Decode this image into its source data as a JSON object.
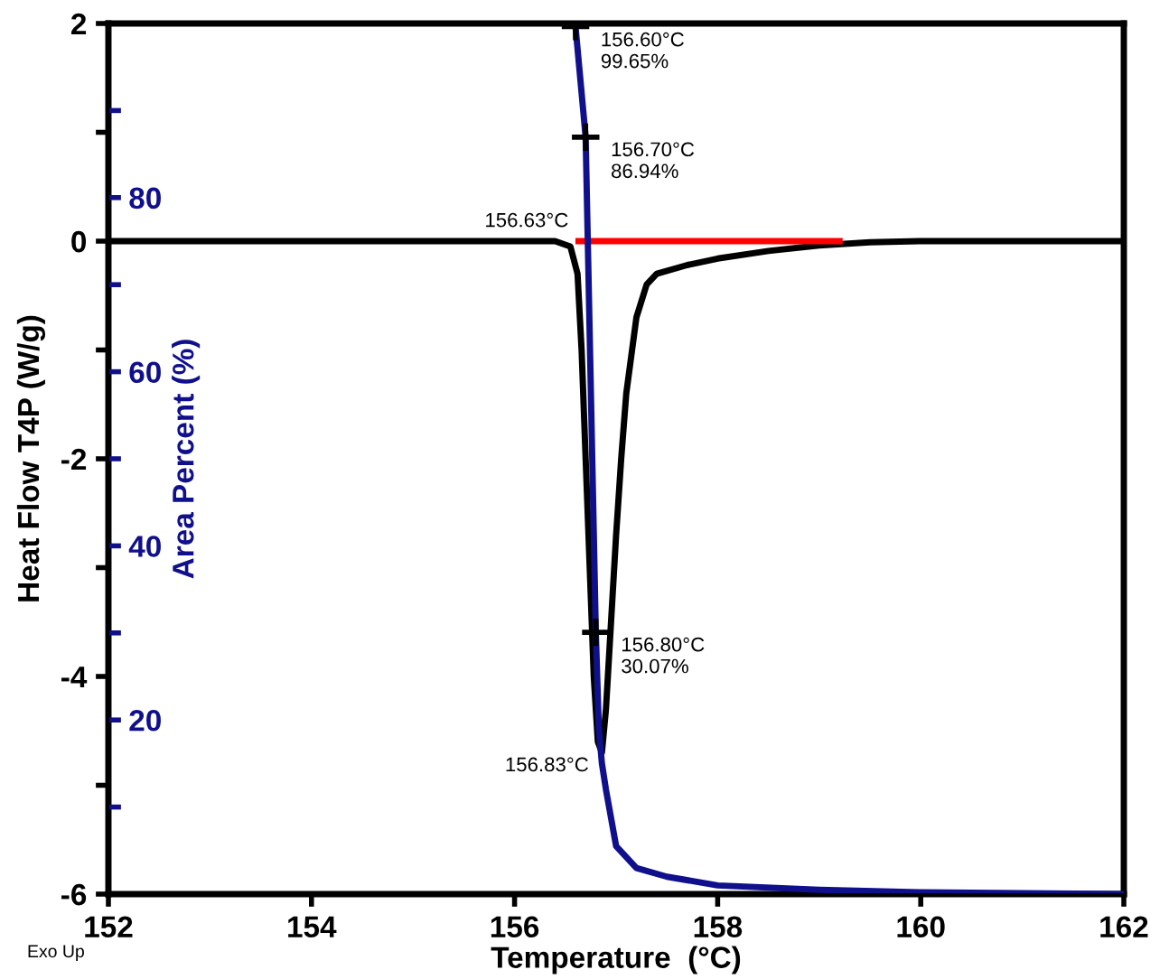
{
  "chart_data": {
    "type": "line",
    "xlabel": "Temperature  (°C)",
    "ylabel": "Heat Flow T4P (W/g)",
    "y2label": "Area Percent (%)",
    "xlim": [
      152,
      162
    ],
    "xticks": [
      152,
      154,
      156,
      158,
      160,
      162
    ],
    "ylim": [
      -6,
      2
    ],
    "yticks": [
      -6,
      {
        "value": -5,
        "label": null
      },
      -4,
      {
        "value": -3,
        "label": null
      },
      -2,
      {
        "value": -1,
        "label": null
      },
      0,
      {
        "value": 1,
        "label": null
      },
      2
    ],
    "y2lim": [
      0,
      100
    ],
    "y2ticks": [
      {
        "value": 10,
        "label": null
      },
      20,
      {
        "value": 30,
        "label": null
      },
      40,
      {
        "value": 50,
        "label": null
      },
      60,
      {
        "value": 70,
        "label": null
      },
      80,
      {
        "value": 90,
        "label": null
      }
    ],
    "grid": false,
    "legend": false,
    "series": [
      {
        "color": "#000000",
        "x": [
          152,
          156.4,
          156.55,
          156.62,
          156.66,
          156.7,
          156.74,
          156.78,
          156.82,
          156.86,
          156.9,
          156.95,
          157.0,
          157.05,
          157.1,
          157.2,
          157.3,
          157.4,
          157.7,
          158,
          158.5,
          159,
          159.5,
          160,
          162
        ],
        "values": [
          0,
          0,
          -0.05,
          -0.3,
          -1.0,
          -2.0,
          -3.0,
          -4.0,
          -4.6,
          -4.7,
          -4.3,
          -3.5,
          -2.7,
          -2.0,
          -1.4,
          -0.7,
          -0.4,
          -0.3,
          -0.22,
          -0.16,
          -0.09,
          -0.04,
          -0.01,
          0,
          0
        ]
      },
      {
        "color": "#ff0000",
        "x": [
          156.63,
          159.2
        ],
        "values": [
          0,
          0
        ]
      },
      {
        "axis": "y2",
        "color": "#10108c",
        "x": [
          156.58,
          156.6,
          156.7,
          156.8,
          156.83,
          156.86,
          156.9,
          157.0,
          157.2,
          157.5,
          158,
          159,
          160,
          162
        ],
        "values": [
          100,
          99.65,
          86.94,
          30.07,
          19,
          15,
          12,
          5.5,
          3,
          2,
          1,
          0.5,
          0.2,
          0
        ]
      },
      {
        "type": "scatter",
        "axis": "y2",
        "color": "#000000",
        "marker": "cross",
        "x": [
          156.6,
          156.7,
          156.8
        ],
        "values": [
          99.65,
          86.94,
          30.07
        ]
      }
    ],
    "annotations": [
      {
        "text": "156.60°C\n99.65%",
        "x": 156.6,
        "y": 1.97
      },
      {
        "text": "156.70°C\n86.94%",
        "x": 156.7,
        "y": 0.96
      },
      {
        "text": "156.63°C",
        "x": 156.63,
        "y": 0
      },
      {
        "text": "156.80°C\n30.07%",
        "x": 156.8,
        "y": -3.59
      },
      {
        "text": "156.83°C",
        "x": 156.83,
        "y": -4.6
      },
      "Exo Up"
    ]
  }
}
